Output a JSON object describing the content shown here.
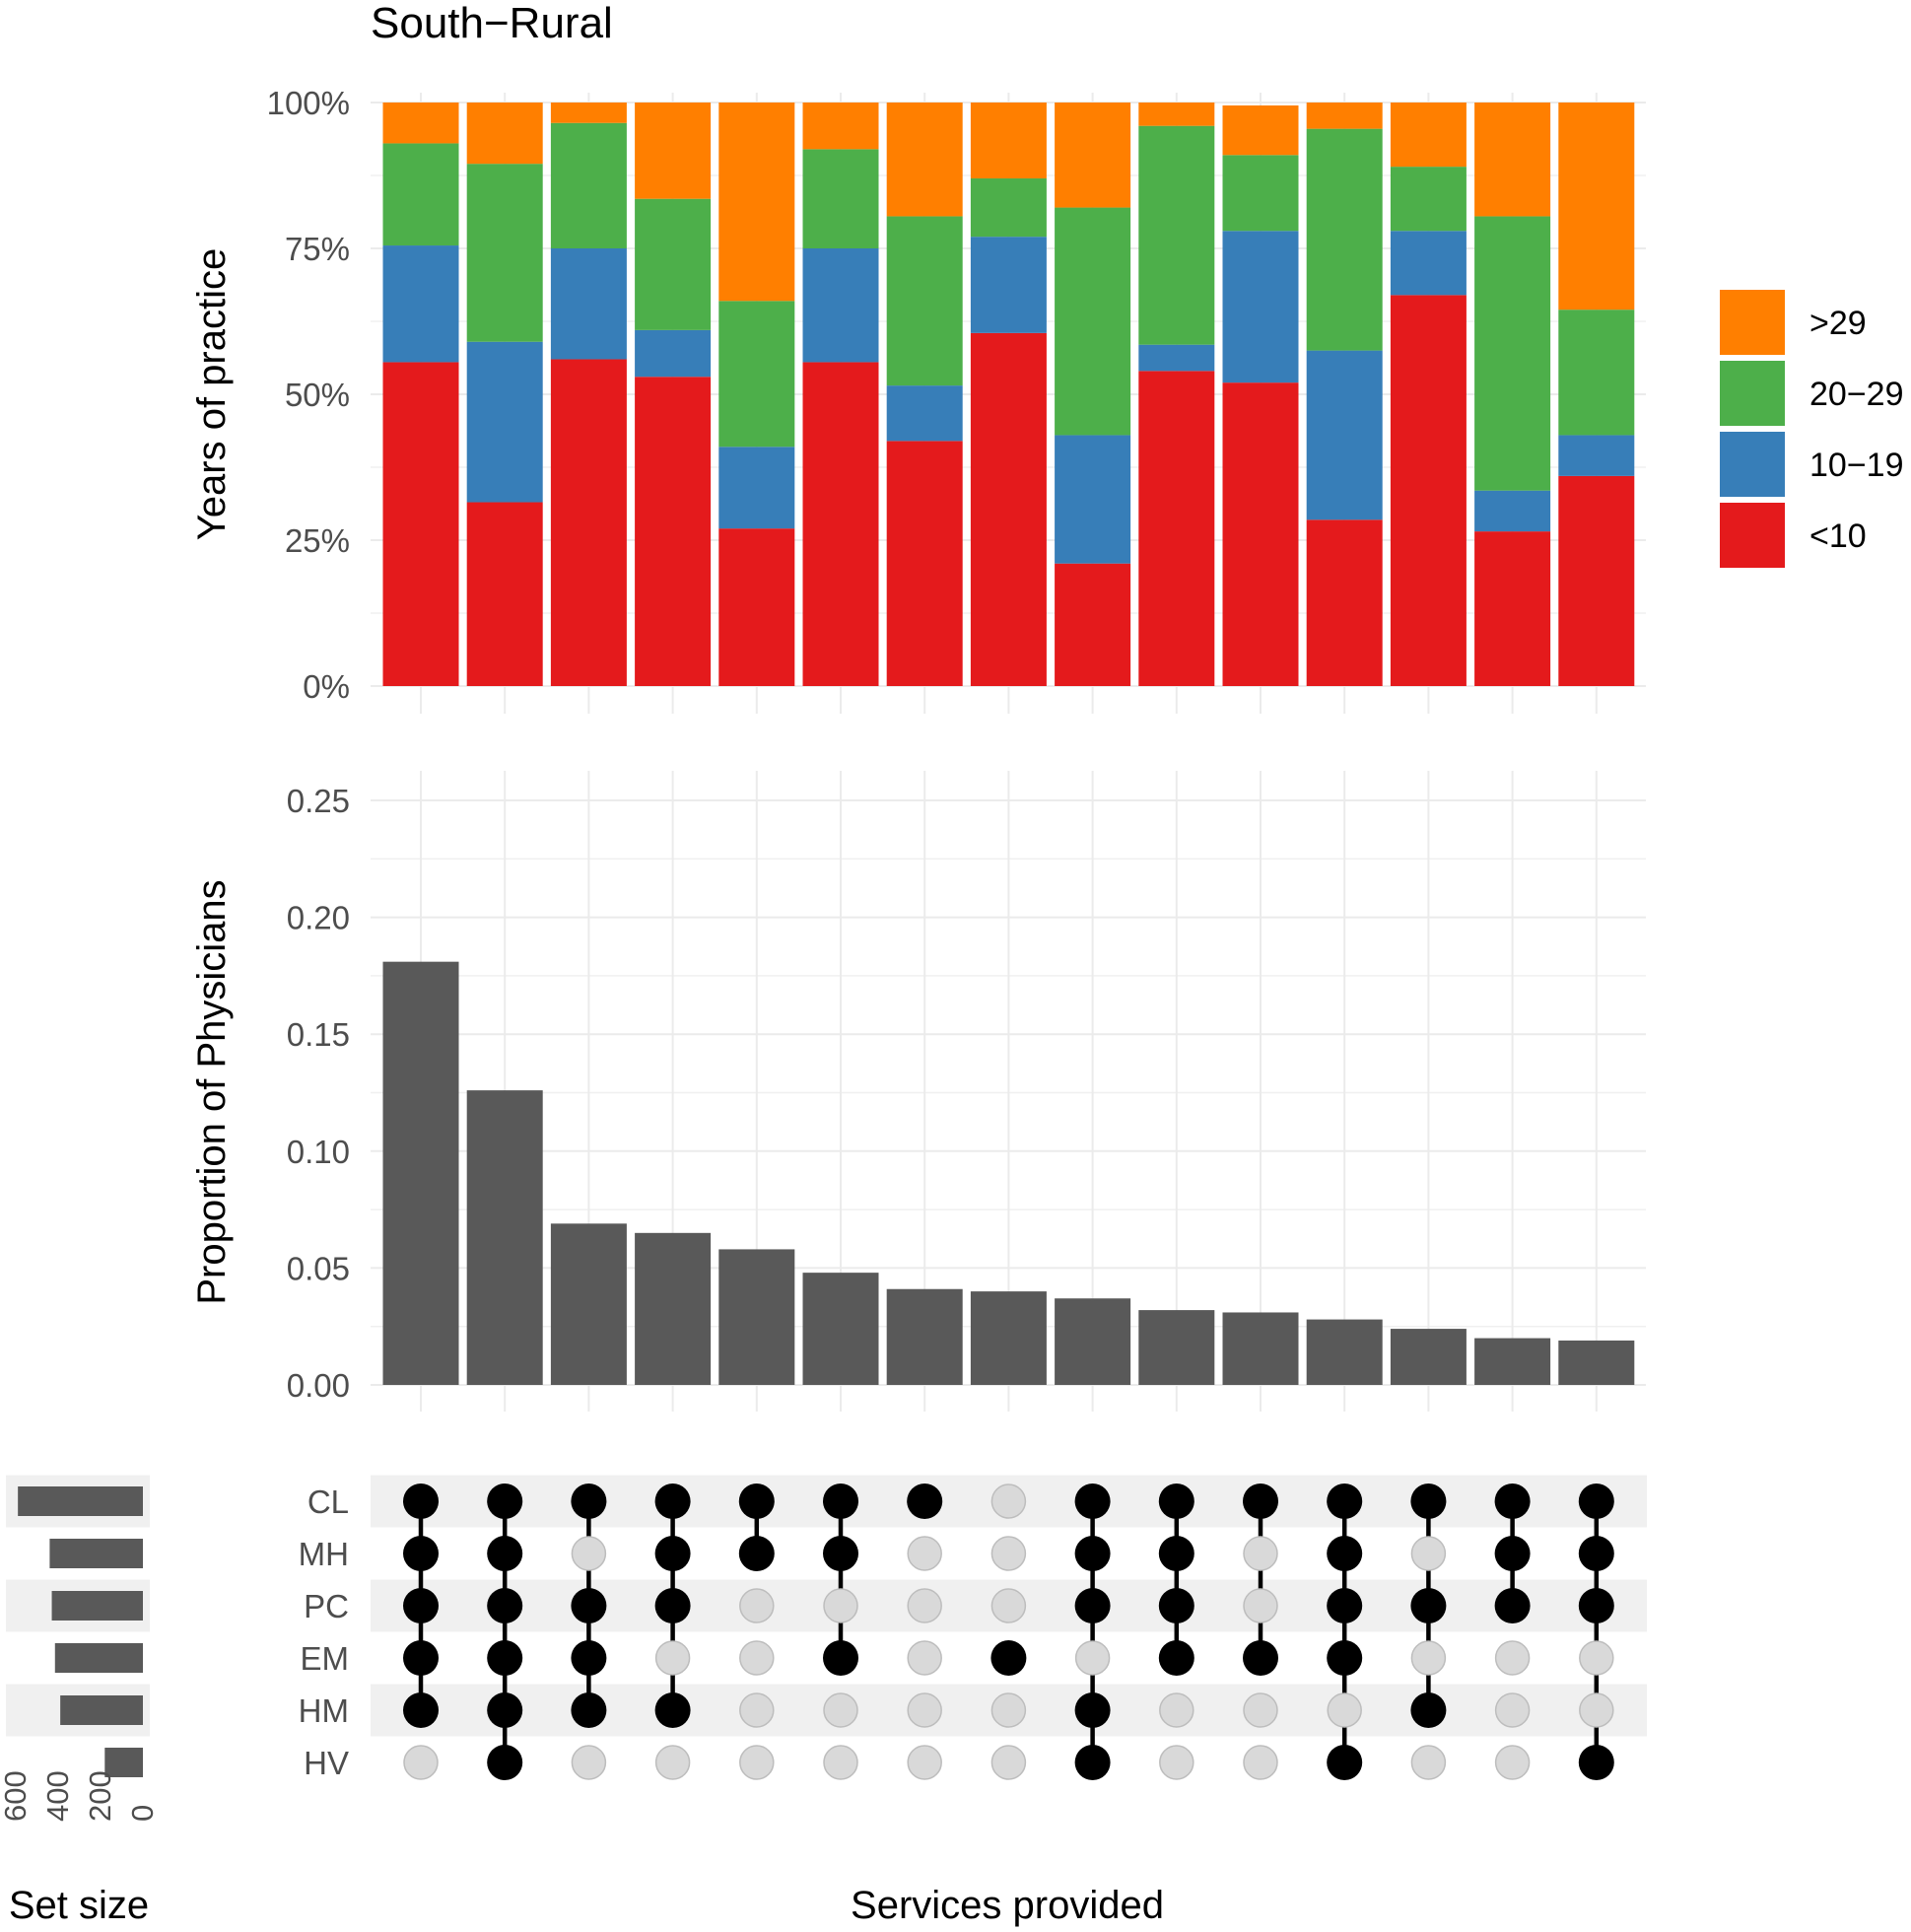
{
  "chart_data": {
    "type": "bar",
    "title": "South−Rural",
    "x_label": "Services provided",
    "combinations": [
      "1",
      "2",
      "3",
      "4",
      "5",
      "6",
      "7",
      "8",
      "9",
      "10",
      "11",
      "12",
      "13",
      "14",
      "15"
    ],
    "stacked": {
      "ylabel": "Years of practice",
      "y_ticks": [
        "0%",
        "25%",
        "50%",
        "75%",
        "100%"
      ],
      "ylim": [
        0,
        100
      ],
      "legend_position": "right",
      "series": [
        {
          "name": "<10",
          "color": "#e41a1c",
          "values": [
            55.5,
            31.5,
            56,
            53,
            27,
            55.5,
            42,
            60.5,
            21,
            54,
            52,
            28.5,
            67,
            26.5,
            36
          ]
        },
        {
          "name": "10−19",
          "color": "#377eb8",
          "values": [
            20,
            27.5,
            19,
            8,
            14,
            19.5,
            9.5,
            16.5,
            22,
            4.5,
            26,
            29,
            11,
            7,
            7
          ]
        },
        {
          "name": "20−29",
          "color": "#4daf4a",
          "values": [
            17.5,
            30.5,
            21.5,
            22.5,
            25,
            17,
            29,
            10,
            39,
            37.5,
            13,
            38,
            11,
            47,
            21.5
          ]
        },
        {
          "name": ">29",
          "color": "#ff7f00",
          "values": [
            7,
            10.5,
            3.5,
            16.5,
            34,
            8,
            19.5,
            13,
            18,
            4,
            8.5,
            4.5,
            11,
            19.5,
            35.5
          ]
        }
      ]
    },
    "proportion": {
      "ylabel": "Proportion of Physicians",
      "y_ticks": [
        "0.00",
        "0.05",
        "0.10",
        "0.15",
        "0.20",
        "0.25"
      ],
      "ylim": [
        0,
        0.25
      ],
      "values": [
        0.181,
        0.126,
        0.069,
        0.065,
        0.058,
        0.048,
        0.041,
        0.04,
        0.037,
        0.032,
        0.031,
        0.028,
        0.024,
        0.02,
        0.019
      ],
      "bar_color": "#595959"
    },
    "sets": {
      "names": [
        "CL",
        "MH",
        "PC",
        "EM",
        "HM",
        "HV"
      ],
      "set_size_label": "Set size",
      "set_size_ticks": [
        "600",
        "400",
        "200",
        "0"
      ],
      "set_size_max": 600,
      "set_sizes": [
        590,
        440,
        430,
        415,
        390,
        180
      ],
      "membership": [
        [
          1,
          1,
          1,
          1,
          1,
          0
        ],
        [
          1,
          1,
          1,
          1,
          1,
          1
        ],
        [
          1,
          0,
          1,
          1,
          1,
          0
        ],
        [
          1,
          1,
          1,
          0,
          1,
          0
        ],
        [
          1,
          1,
          0,
          0,
          0,
          0
        ],
        [
          1,
          1,
          0,
          1,
          0,
          0
        ],
        [
          1,
          0,
          0,
          0,
          0,
          0
        ],
        [
          0,
          0,
          0,
          1,
          0,
          0
        ],
        [
          1,
          1,
          1,
          0,
          1,
          1
        ],
        [
          1,
          1,
          1,
          1,
          0,
          0
        ],
        [
          1,
          0,
          0,
          1,
          0,
          0
        ],
        [
          1,
          1,
          1,
          1,
          0,
          1
        ],
        [
          1,
          0,
          1,
          0,
          1,
          0
        ],
        [
          1,
          1,
          1,
          0,
          0,
          0
        ],
        [
          1,
          1,
          1,
          0,
          0,
          1
        ]
      ]
    }
  }
}
